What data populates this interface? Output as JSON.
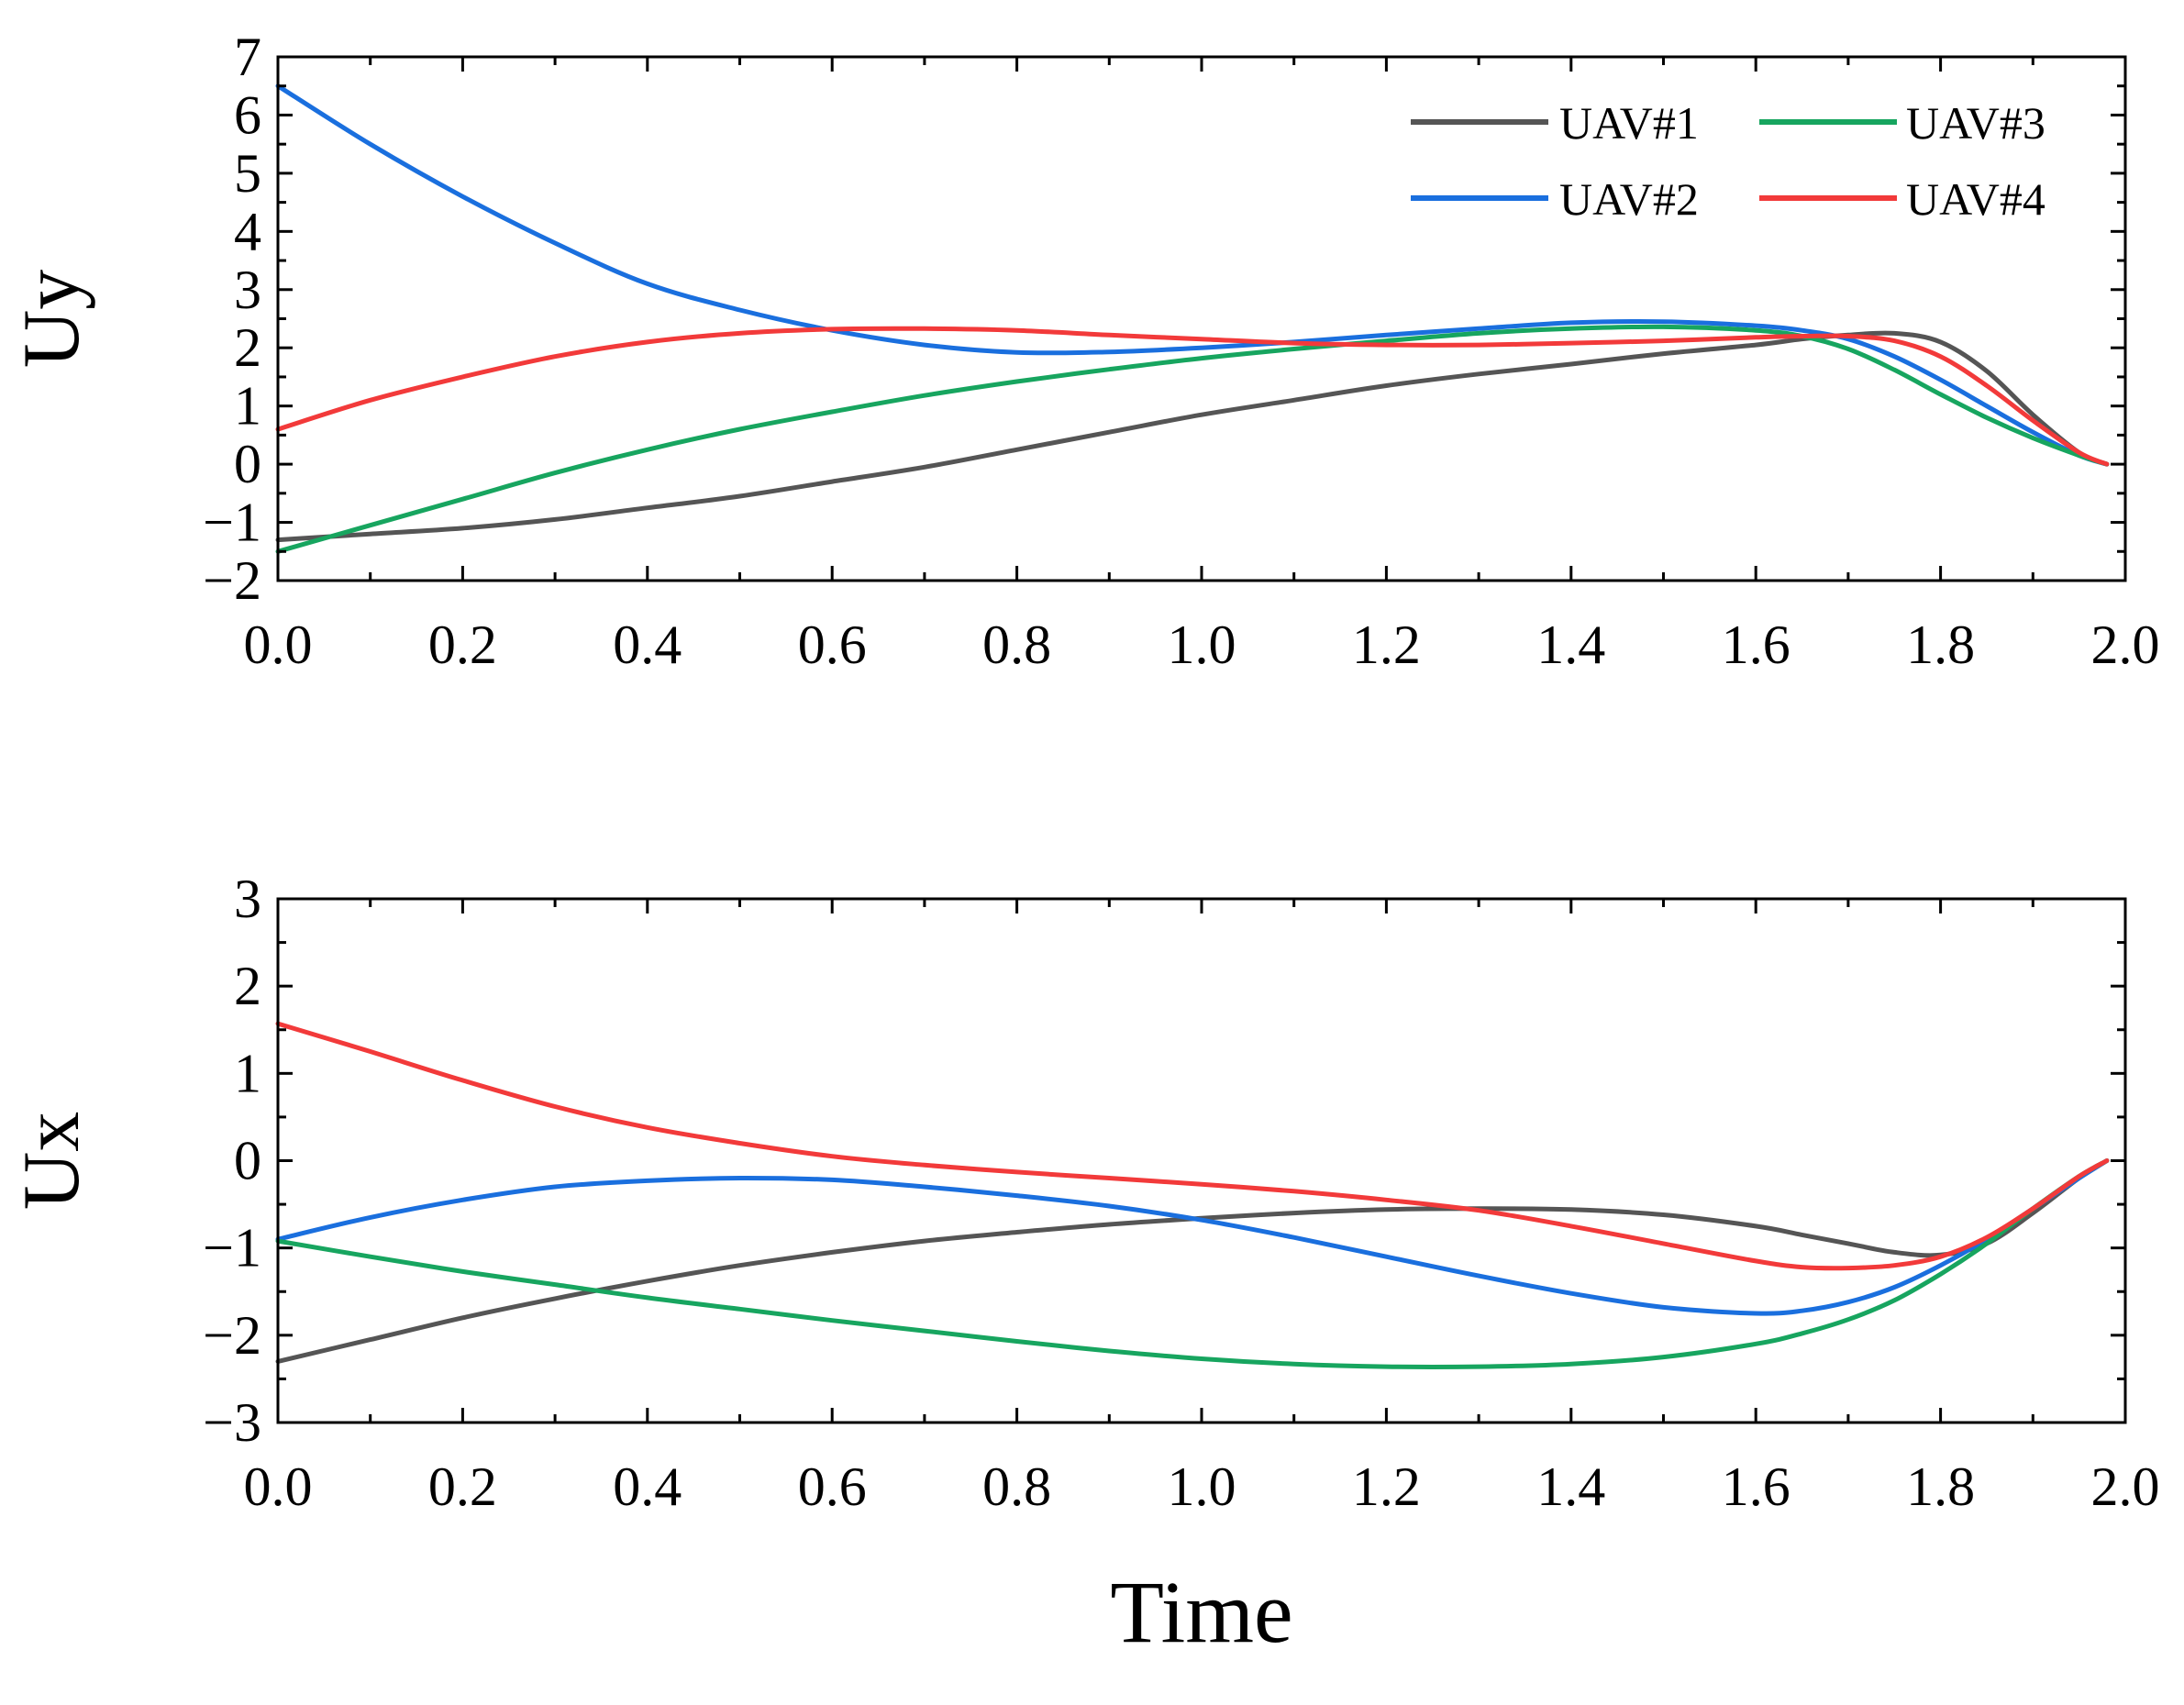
{
  "colors": {
    "UAV#1": "#555555",
    "UAV#2": "#1a6fde",
    "UAV#3": "#17a55f",
    "UAV#4": "#f23a3a"
  },
  "chart_data": [
    {
      "type": "line",
      "title": "",
      "xlabel": "",
      "ylabel": "Uy",
      "xlim": [
        0,
        2.0
      ],
      "ylim": [
        -2,
        7
      ],
      "xticks": [
        "0.0",
        "0.2",
        "0.4",
        "0.6",
        "0.8",
        "1.0",
        "1.2",
        "1.4",
        "1.6",
        "1.8",
        "2.0"
      ],
      "yticks": [
        "−2",
        "−1",
        "0",
        "1",
        "2",
        "3",
        "4",
        "5",
        "6",
        "7"
      ],
      "legend": {
        "placement": "top-right",
        "columns": 2,
        "entries": [
          "UAV#1",
          "UAV#2",
          "UAV#3",
          "UAV#4"
        ]
      },
      "series": [
        {
          "name": "UAV#1",
          "x": [
            0,
            0.1,
            0.2,
            0.3,
            0.4,
            0.5,
            0.6,
            0.7,
            0.8,
            0.9,
            1.0,
            1.1,
            1.2,
            1.3,
            1.4,
            1.5,
            1.6,
            1.65,
            1.7,
            1.75,
            1.8,
            1.85,
            1.9,
            1.95,
            1.98
          ],
          "values": [
            -1.3,
            -1.2,
            -1.1,
            -0.95,
            -0.75,
            -0.55,
            -0.3,
            -0.05,
            0.25,
            0.55,
            0.85,
            1.1,
            1.35,
            1.55,
            1.72,
            1.9,
            2.05,
            2.15,
            2.22,
            2.25,
            2.1,
            1.6,
            0.85,
            0.2,
            0.0
          ]
        },
        {
          "name": "UAV#2",
          "x": [
            0,
            0.1,
            0.2,
            0.3,
            0.4,
            0.5,
            0.6,
            0.7,
            0.8,
            0.9,
            1.0,
            1.1,
            1.2,
            1.3,
            1.4,
            1.5,
            1.6,
            1.65,
            1.7,
            1.75,
            1.8,
            1.85,
            1.9,
            1.95,
            1.98
          ],
          "values": [
            6.5,
            5.5,
            4.6,
            3.8,
            3.1,
            2.65,
            2.3,
            2.05,
            1.92,
            1.93,
            2.0,
            2.1,
            2.22,
            2.33,
            2.43,
            2.45,
            2.38,
            2.3,
            2.15,
            1.85,
            1.45,
            1.0,
            0.55,
            0.15,
            0.0
          ]
        },
        {
          "name": "UAV#3",
          "x": [
            0,
            0.1,
            0.2,
            0.3,
            0.4,
            0.5,
            0.6,
            0.7,
            0.8,
            0.9,
            1.0,
            1.1,
            1.2,
            1.3,
            1.4,
            1.5,
            1.6,
            1.65,
            1.7,
            1.75,
            1.8,
            1.85,
            1.9,
            1.95,
            1.98
          ],
          "values": [
            -1.5,
            -1.05,
            -0.6,
            -0.15,
            0.25,
            0.6,
            0.9,
            1.18,
            1.42,
            1.63,
            1.82,
            1.98,
            2.12,
            2.25,
            2.33,
            2.36,
            2.3,
            2.2,
            1.98,
            1.62,
            1.2,
            0.8,
            0.45,
            0.15,
            0.0
          ]
        },
        {
          "name": "UAV#4",
          "x": [
            0,
            0.1,
            0.2,
            0.3,
            0.4,
            0.5,
            0.6,
            0.7,
            0.8,
            0.9,
            1.0,
            1.1,
            1.2,
            1.3,
            1.4,
            1.5,
            1.6,
            1.65,
            1.7,
            1.75,
            1.8,
            1.85,
            1.9,
            1.95,
            1.98
          ],
          "values": [
            0.6,
            1.1,
            1.5,
            1.85,
            2.1,
            2.25,
            2.32,
            2.33,
            2.3,
            2.22,
            2.15,
            2.08,
            2.05,
            2.05,
            2.08,
            2.12,
            2.18,
            2.2,
            2.2,
            2.12,
            1.85,
            1.35,
            0.75,
            0.2,
            0.0
          ]
        }
      ]
    },
    {
      "type": "line",
      "title": "",
      "xlabel": "Time",
      "ylabel": "Ux",
      "xlim": [
        0,
        2.0
      ],
      "ylim": [
        -3,
        3
      ],
      "xticks": [
        "0.0",
        "0.2",
        "0.4",
        "0.6",
        "0.8",
        "1.0",
        "1.2",
        "1.4",
        "1.6",
        "1.8",
        "2.0"
      ],
      "yticks": [
        "−3",
        "−2",
        "−1",
        "0",
        "1",
        "2",
        "3"
      ],
      "series": [
        {
          "name": "UAV#1",
          "x": [
            0,
            0.1,
            0.2,
            0.3,
            0.4,
            0.5,
            0.6,
            0.7,
            0.8,
            0.9,
            1.0,
            1.1,
            1.2,
            1.3,
            1.4,
            1.5,
            1.6,
            1.65,
            1.7,
            1.75,
            1.8,
            1.85,
            1.9,
            1.95,
            1.98
          ],
          "values": [
            -2.3,
            -2.05,
            -1.8,
            -1.58,
            -1.38,
            -1.2,
            -1.05,
            -0.92,
            -0.82,
            -0.73,
            -0.66,
            -0.6,
            -0.56,
            -0.55,
            -0.56,
            -0.62,
            -0.75,
            -0.85,
            -0.95,
            -1.05,
            -1.08,
            -0.95,
            -0.6,
            -0.2,
            0.0
          ]
        },
        {
          "name": "UAV#2",
          "x": [
            0,
            0.1,
            0.2,
            0.3,
            0.4,
            0.5,
            0.6,
            0.7,
            0.8,
            0.9,
            1.0,
            1.1,
            1.2,
            1.3,
            1.4,
            1.5,
            1.6,
            1.65,
            1.7,
            1.75,
            1.8,
            1.85,
            1.9,
            1.95,
            1.98
          ],
          "values": [
            -0.9,
            -0.65,
            -0.45,
            -0.3,
            -0.23,
            -0.2,
            -0.22,
            -0.3,
            -0.4,
            -0.52,
            -0.68,
            -0.88,
            -1.1,
            -1.32,
            -1.52,
            -1.68,
            -1.75,
            -1.72,
            -1.62,
            -1.45,
            -1.2,
            -0.9,
            -0.55,
            -0.2,
            0.0
          ]
        },
        {
          "name": "UAV#3",
          "x": [
            0,
            0.1,
            0.2,
            0.3,
            0.4,
            0.5,
            0.6,
            0.7,
            0.8,
            0.9,
            1.0,
            1.1,
            1.2,
            1.3,
            1.4,
            1.5,
            1.6,
            1.65,
            1.7,
            1.75,
            1.8,
            1.85,
            1.9,
            1.95,
            1.98
          ],
          "values": [
            -0.92,
            -1.1,
            -1.27,
            -1.42,
            -1.57,
            -1.7,
            -1.83,
            -1.95,
            -2.07,
            -2.18,
            -2.27,
            -2.33,
            -2.36,
            -2.36,
            -2.33,
            -2.25,
            -2.1,
            -1.98,
            -1.82,
            -1.6,
            -1.3,
            -0.95,
            -0.55,
            -0.18,
            0.0
          ]
        },
        {
          "name": "UAV#4",
          "x": [
            0,
            0.1,
            0.2,
            0.3,
            0.4,
            0.5,
            0.6,
            0.7,
            0.8,
            0.9,
            1.0,
            1.1,
            1.2,
            1.3,
            1.4,
            1.5,
            1.6,
            1.65,
            1.7,
            1.75,
            1.8,
            1.85,
            1.9,
            1.95,
            1.98
          ],
          "values": [
            1.57,
            1.25,
            0.92,
            0.62,
            0.38,
            0.2,
            0.05,
            -0.05,
            -0.13,
            -0.2,
            -0.27,
            -0.35,
            -0.45,
            -0.57,
            -0.75,
            -0.95,
            -1.15,
            -1.22,
            -1.23,
            -1.2,
            -1.1,
            -0.88,
            -0.55,
            -0.18,
            0.0
          ]
        }
      ]
    }
  ]
}
